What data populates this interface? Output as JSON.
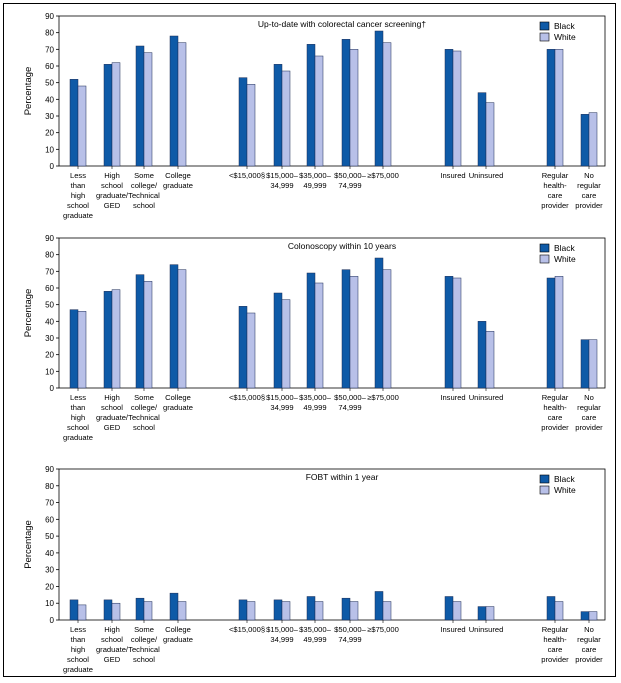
{
  "top_caption": "",
  "colors": {
    "black": "#0E5AA7",
    "white": "#B8C0E8",
    "frame": "#000000"
  },
  "chart_data": [
    {
      "type": "bar",
      "title": "Up-to-date with colorectal cancer screening†",
      "ylabel": "Percentage",
      "ylim": [
        0,
        90
      ],
      "yticks": [
        0,
        10,
        20,
        30,
        40,
        50,
        60,
        70,
        80,
        90
      ],
      "legend_placement": "top-right",
      "categories": [
        {
          "label": [
            "Less",
            "than",
            "high",
            "school",
            "graduate"
          ]
        },
        {
          "label": [
            "High",
            "school",
            "graduate/",
            "GED"
          ]
        },
        {
          "label": [
            "Some",
            "college/",
            "Technical",
            "school"
          ]
        },
        {
          "label": [
            "College",
            "graduate"
          ]
        },
        {
          "label": [
            "<$15,000§"
          ]
        },
        {
          "label": [
            "$15,000–",
            "34,999"
          ]
        },
        {
          "label": [
            "$35,000–",
            "49,999"
          ]
        },
        {
          "label": [
            "$50,000–",
            "74,999"
          ]
        },
        {
          "label": [
            "≥$75,000"
          ]
        },
        {
          "label": [
            "Insured"
          ]
        },
        {
          "label": [
            "Uninsured"
          ]
        },
        {
          "label": [
            "Regular",
            "health-",
            "care",
            "provider"
          ]
        },
        {
          "label": [
            "No",
            "regular",
            "care",
            "provider"
          ]
        }
      ],
      "series": [
        {
          "name": "Black",
          "values": [
            52,
            61,
            72,
            78,
            53,
            61,
            73,
            76,
            81,
            70,
            44,
            70,
            31
          ]
        },
        {
          "name": "White",
          "values": [
            48,
            62,
            68,
            74,
            49,
            57,
            66,
            70,
            74,
            69,
            38,
            70,
            32
          ]
        }
      ]
    },
    {
      "type": "bar",
      "title": "Colonoscopy within 10 years",
      "ylabel": "Percentage",
      "ylim": [
        0,
        90
      ],
      "yticks": [
        0,
        10,
        20,
        30,
        40,
        50,
        60,
        70,
        80,
        90
      ],
      "legend_placement": "top-right",
      "categories": [
        {
          "label": [
            "Less",
            "than",
            "high",
            "school",
            "graduate"
          ]
        },
        {
          "label": [
            "High",
            "school",
            "graduate/",
            "GED"
          ]
        },
        {
          "label": [
            "Some",
            "college/",
            "Technical",
            "school"
          ]
        },
        {
          "label": [
            "College",
            "graduate"
          ]
        },
        {
          "label": [
            "<$15,000§"
          ]
        },
        {
          "label": [
            "$15,000–",
            "34,999"
          ]
        },
        {
          "label": [
            "$35,000–",
            "49,999"
          ]
        },
        {
          "label": [
            "$50,000–",
            "74,999"
          ]
        },
        {
          "label": [
            "≥$75,000"
          ]
        },
        {
          "label": [
            "Insured"
          ]
        },
        {
          "label": [
            "Uninsured"
          ]
        },
        {
          "label": [
            "Regular",
            "health-",
            "care",
            "provider"
          ]
        },
        {
          "label": [
            "No",
            "regular",
            "care",
            "provider"
          ]
        }
      ],
      "series": [
        {
          "name": "Black",
          "values": [
            47,
            58,
            68,
            74,
            49,
            57,
            69,
            71,
            78,
            67,
            40,
            66,
            29
          ]
        },
        {
          "name": "White",
          "values": [
            46,
            59,
            64,
            71,
            45,
            53,
            63,
            67,
            71,
            66,
            34,
            67,
            29
          ]
        }
      ]
    },
    {
      "type": "bar",
      "title": "FOBT within 1 year",
      "ylabel": "Percentage",
      "ylim": [
        0,
        90
      ],
      "yticks": [
        0,
        10,
        20,
        30,
        40,
        50,
        60,
        70,
        80,
        90
      ],
      "legend_placement": "top-right",
      "categories": [
        {
          "label": [
            "Less",
            "than",
            "high",
            "school",
            "graduate"
          ]
        },
        {
          "label": [
            "High",
            "school",
            "graduate/",
            "GED"
          ]
        },
        {
          "label": [
            "Some",
            "college/",
            "Technical",
            "school"
          ]
        },
        {
          "label": [
            "College",
            "graduate"
          ]
        },
        {
          "label": [
            "<$15,000§"
          ]
        },
        {
          "label": [
            "$15,000–",
            "34,999"
          ]
        },
        {
          "label": [
            "$35,000–",
            "49,999"
          ]
        },
        {
          "label": [
            "$50,000–",
            "74,999"
          ]
        },
        {
          "label": [
            "≥$75,000"
          ]
        },
        {
          "label": [
            "Insured"
          ]
        },
        {
          "label": [
            "Uninsured"
          ]
        },
        {
          "label": [
            "Regular",
            "health-",
            "care",
            "provider"
          ]
        },
        {
          "label": [
            "No",
            "regular",
            "care",
            "provider"
          ]
        }
      ],
      "series": [
        {
          "name": "Black",
          "values": [
            12,
            12,
            13,
            16,
            12,
            12,
            14,
            13,
            17,
            14,
            8,
            14,
            5
          ]
        },
        {
          "name": "White",
          "values": [
            9,
            10,
            11,
            11,
            11,
            11,
            11,
            11,
            11,
            11,
            8,
            11,
            5
          ]
        }
      ]
    }
  ]
}
